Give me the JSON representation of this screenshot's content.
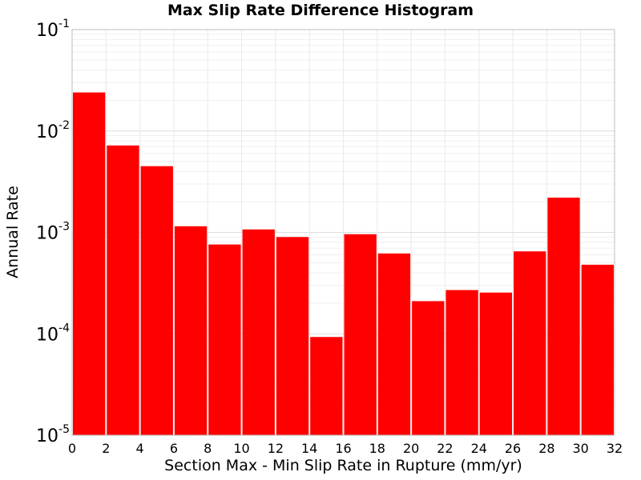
{
  "chart_data": {
    "type": "bar",
    "title": "Max Slip Rate Difference Histogram",
    "xlabel": "Section Max - Min Slip Rate in Rupture (mm/yr)",
    "ylabel": "Annual Rate",
    "xlim": [
      0,
      32
    ],
    "ylim": [
      1e-05,
      0.1
    ],
    "yscale": "log",
    "grid": true,
    "bar_color": "#ff0000",
    "bin_width": 2,
    "x_ticks": [
      "0",
      "2",
      "4",
      "6",
      "8",
      "10",
      "12",
      "14",
      "16",
      "18",
      "20",
      "22",
      "24",
      "26",
      "28",
      "30",
      "32"
    ],
    "y_ticks": [
      {
        "base": "10",
        "exp": "-5",
        "value": 1e-05
      },
      {
        "base": "10",
        "exp": "-4",
        "value": 0.0001
      },
      {
        "base": "10",
        "exp": "-3",
        "value": 0.001
      },
      {
        "base": "10",
        "exp": "-2",
        "value": 0.01
      },
      {
        "base": "10",
        "exp": "-1",
        "value": 0.1
      }
    ],
    "bins": [
      {
        "x_start": 0,
        "x_end": 2,
        "value": 0.024
      },
      {
        "x_start": 2,
        "x_end": 4,
        "value": 0.0072
      },
      {
        "x_start": 4,
        "x_end": 6,
        "value": 0.0045
      },
      {
        "x_start": 6,
        "x_end": 8,
        "value": 0.00115
      },
      {
        "x_start": 8,
        "x_end": 10,
        "value": 0.00076
      },
      {
        "x_start": 10,
        "x_end": 12,
        "value": 0.00107
      },
      {
        "x_start": 12,
        "x_end": 14,
        "value": 0.0009
      },
      {
        "x_start": 14,
        "x_end": 16,
        "value": 9.3e-05
      },
      {
        "x_start": 16,
        "x_end": 18,
        "value": 0.00096
      },
      {
        "x_start": 18,
        "x_end": 20,
        "value": 0.00062
      },
      {
        "x_start": 20,
        "x_end": 22,
        "value": 0.00021
      },
      {
        "x_start": 22,
        "x_end": 24,
        "value": 0.00027
      },
      {
        "x_start": 24,
        "x_end": 26,
        "value": 0.000255
      },
      {
        "x_start": 26,
        "x_end": 28,
        "value": 0.00065
      },
      {
        "x_start": 28,
        "x_end": 30,
        "value": 0.0022
      },
      {
        "x_start": 30,
        "x_end": 32,
        "value": 0.00048
      }
    ]
  }
}
